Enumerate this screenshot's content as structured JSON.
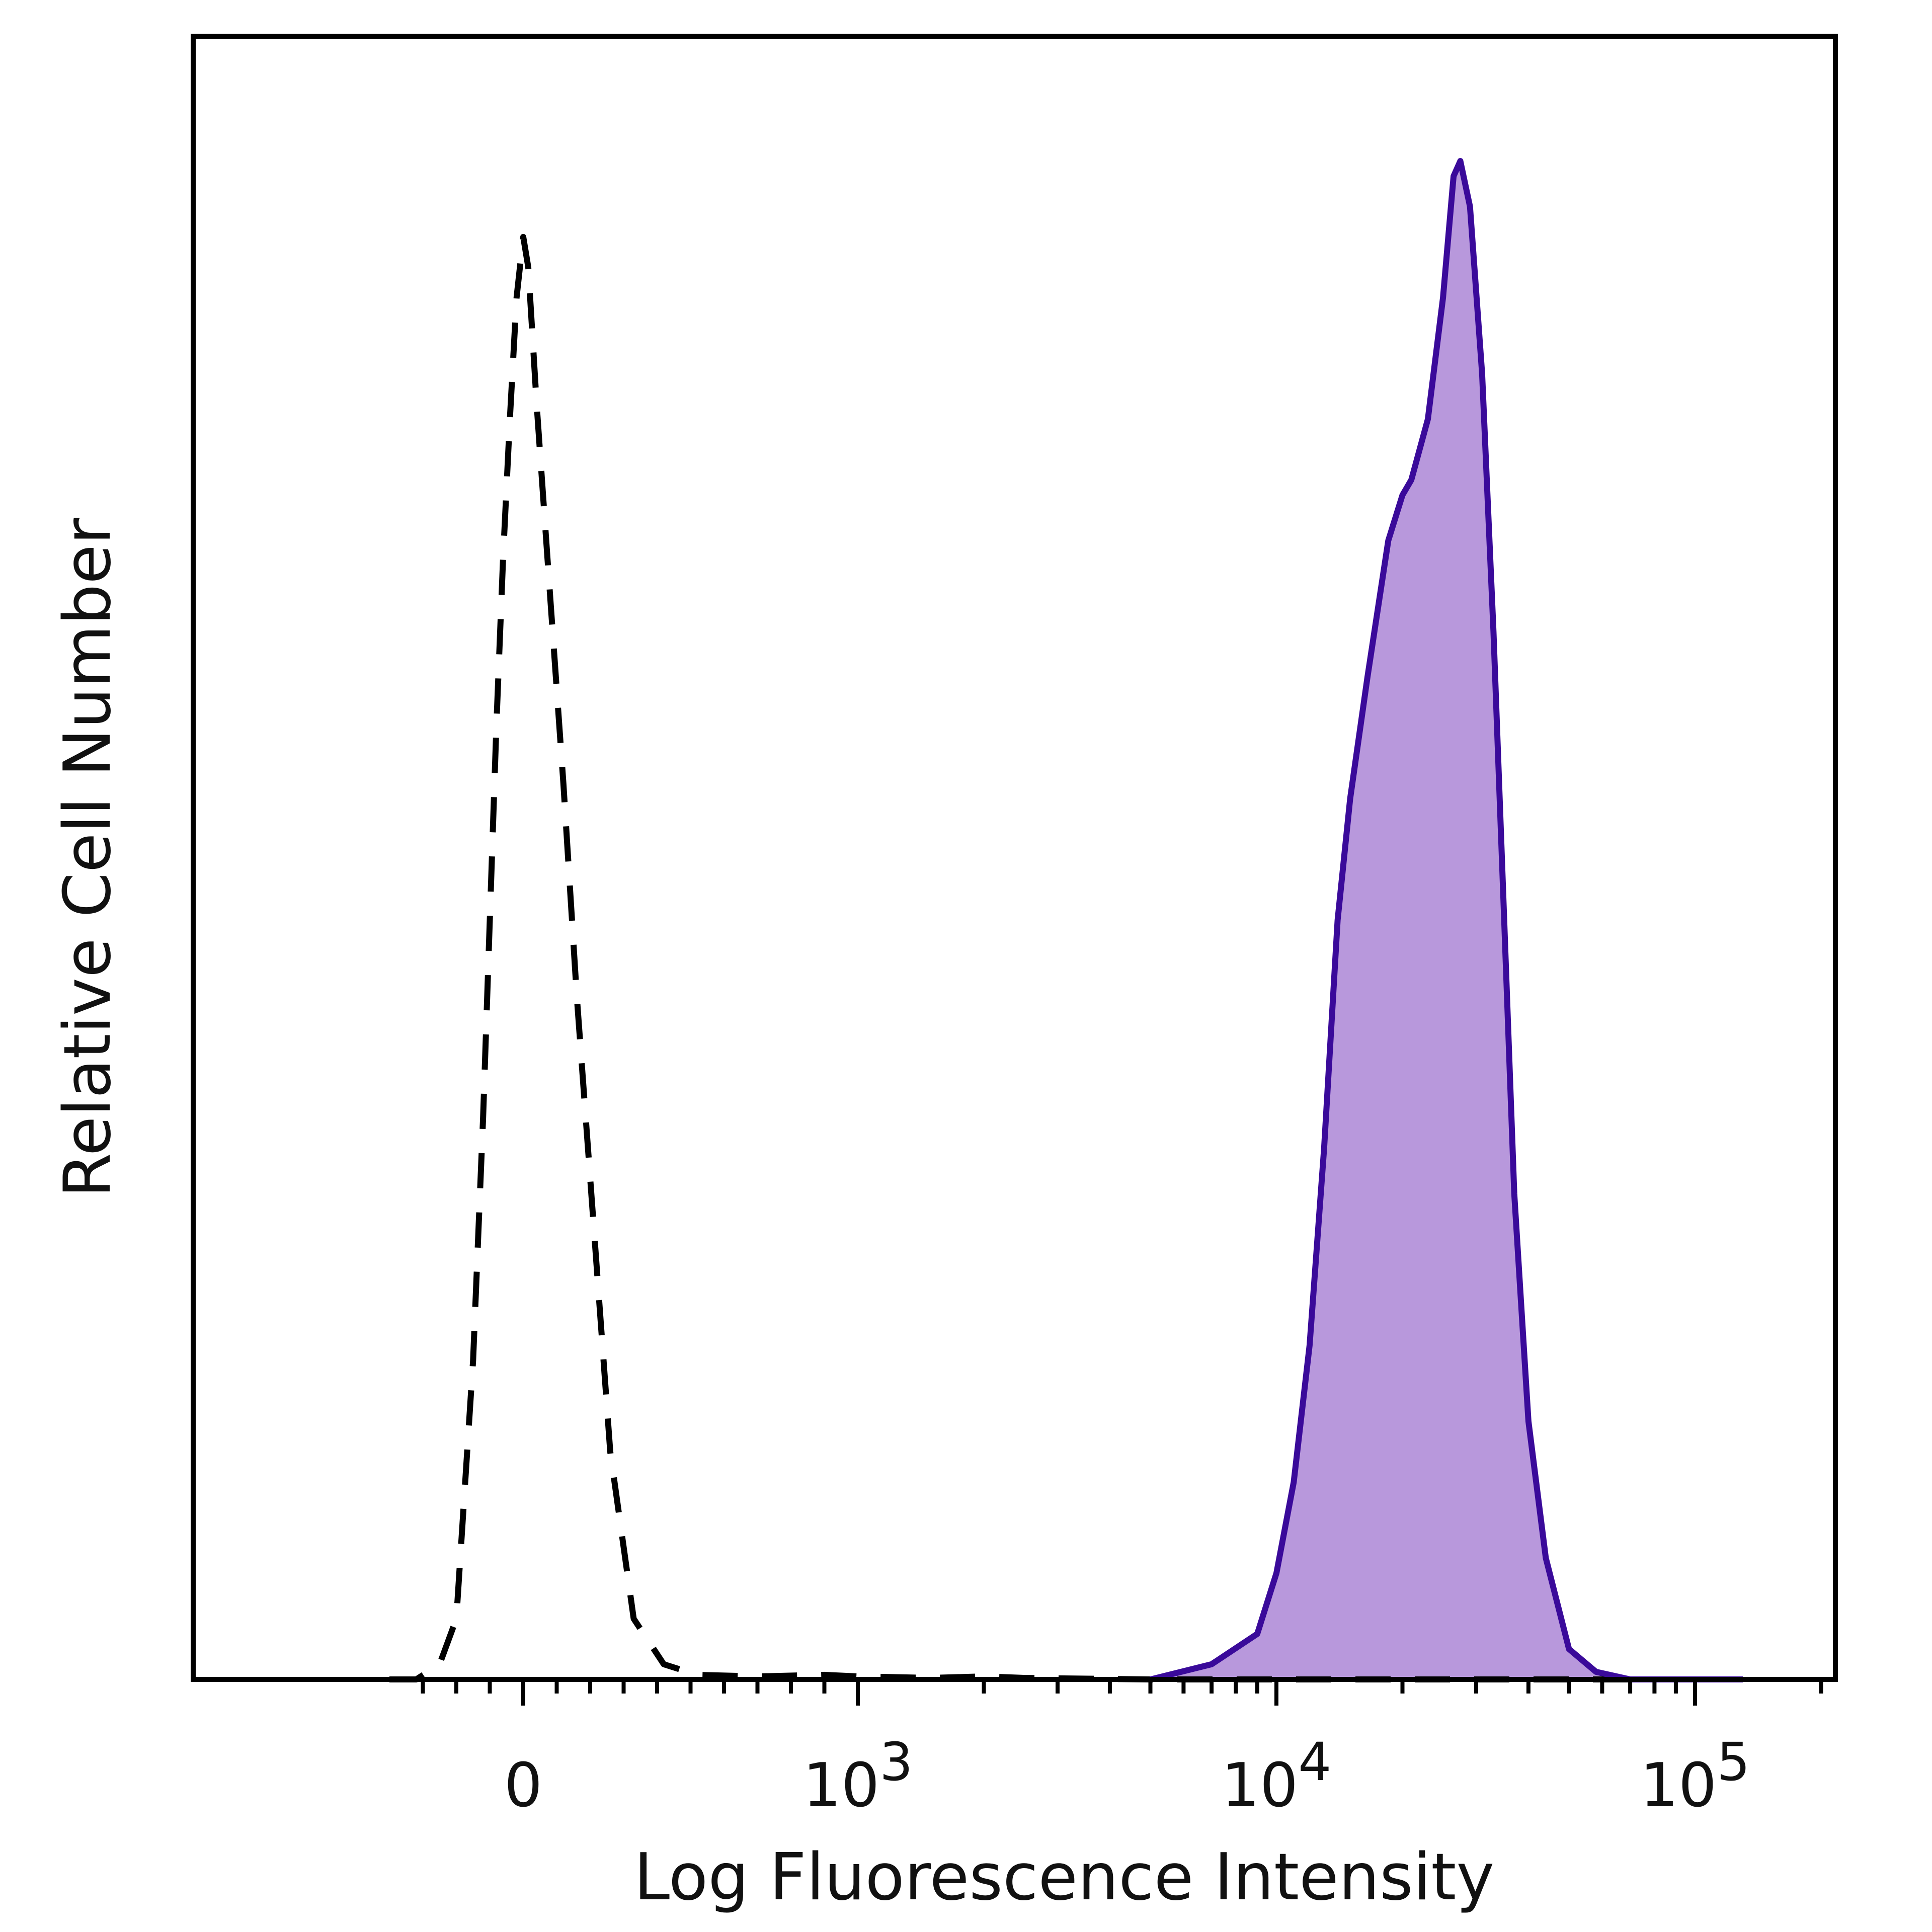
{
  "chart_data": {
    "type": "area",
    "title": "",
    "xlabel": "Log Fluorescence Intensity",
    "ylabel": "Relative Cell Number",
    "x_scale": "biexponential",
    "xlim": [
      -400,
      130000
    ],
    "ylim": [
      0,
      1
    ],
    "x_ticks": [
      {
        "value": 0,
        "label": "0",
        "sup": ""
      },
      {
        "value": 1000,
        "label": "10",
        "sup": "3"
      },
      {
        "value": 10000,
        "label": "10",
        "sup": "4"
      },
      {
        "value": 100000,
        "label": "10",
        "sup": "5"
      }
    ],
    "grid": false,
    "legend": "none",
    "series": [
      {
        "style": "dashed",
        "color": "#000000",
        "fill": "none",
        "points": [
          [
            -400,
            0
          ],
          [
            -320,
            0
          ],
          [
            -250,
            0.01
          ],
          [
            -200,
            0.04
          ],
          [
            -150,
            0.21
          ],
          [
            -120,
            0.37
          ],
          [
            -100,
            0.5
          ],
          [
            -80,
            0.63
          ],
          [
            -60,
            0.74
          ],
          [
            -40,
            0.83
          ],
          [
            -20,
            0.91
          ],
          [
            0,
            0.95
          ],
          [
            15,
            0.93
          ],
          [
            40,
            0.84
          ],
          [
            75,
            0.73
          ],
          [
            120,
            0.59
          ],
          [
            160,
            0.45
          ],
          [
            210,
            0.3
          ],
          [
            260,
            0.15
          ],
          [
            330,
            0.04
          ],
          [
            420,
            0.01
          ],
          [
            520,
            0.003
          ],
          [
            700,
            0.002
          ],
          [
            900,
            0.003
          ],
          [
            1000,
            0.002
          ],
          [
            1500,
            0.001
          ],
          [
            2000,
            0.002
          ],
          [
            2500,
            0.001
          ],
          [
            5000,
            0
          ],
          [
            130000,
            0
          ]
        ]
      },
      {
        "style": "solid-filled",
        "color": "#3a0a9a",
        "fill": "#b898dc",
        "points": [
          [
            5000,
            0
          ],
          [
            7000,
            0.01
          ],
          [
            9000,
            0.03
          ],
          [
            10000,
            0.07
          ],
          [
            11000,
            0.13
          ],
          [
            12000,
            0.22
          ],
          [
            13000,
            0.35
          ],
          [
            14000,
            0.5
          ],
          [
            15000,
            0.58
          ],
          [
            16500,
            0.66
          ],
          [
            18500,
            0.75
          ],
          [
            20000,
            0.78
          ],
          [
            21000,
            0.79
          ],
          [
            23000,
            0.83
          ],
          [
            25000,
            0.91
          ],
          [
            26500,
            0.99
          ],
          [
            27500,
            1.0
          ],
          [
            29000,
            0.97
          ],
          [
            31000,
            0.86
          ],
          [
            33000,
            0.69
          ],
          [
            35000,
            0.5
          ],
          [
            37000,
            0.32
          ],
          [
            40000,
            0.17
          ],
          [
            44000,
            0.08
          ],
          [
            50000,
            0.02
          ],
          [
            58000,
            0.005
          ],
          [
            70000,
            0
          ],
          [
            130000,
            0
          ]
        ]
      }
    ]
  },
  "colors": {
    "filled_series_fill": "#b898dc",
    "filled_series_stroke": "#3a0a9a",
    "control_series_stroke": "#000000",
    "frame": "#000000"
  }
}
